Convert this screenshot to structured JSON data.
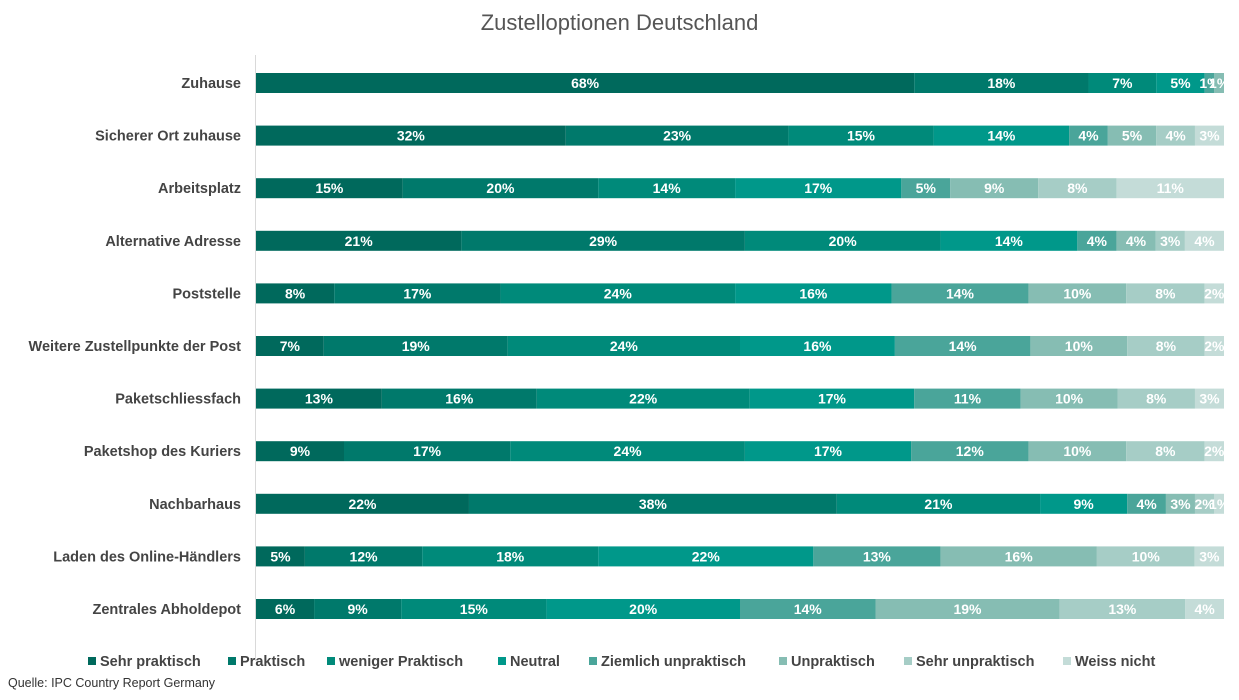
{
  "chart_data": {
    "type": "bar",
    "orientation": "horizontal",
    "stacked": true,
    "title": "Zustelloptionen Deutschland",
    "categories": [
      "Zuhause",
      "Sicherer Ort zuhause",
      "Arbeitsplatz",
      "Alternative Adresse",
      "Poststelle",
      "Weitere Zustellpunkte der Post",
      "Paketschliessfach",
      "Paketshop des Kuriers",
      "Nachbarhaus",
      "Laden des Online-Händlers",
      "Zentrales Abholdepot"
    ],
    "series": [
      {
        "name": "Sehr praktisch",
        "color": "#00695c",
        "values": [
          68,
          32,
          15,
          21,
          8,
          7,
          13,
          9,
          22,
          5,
          6
        ]
      },
      {
        "name": "Praktisch",
        "color": "#00796b",
        "values": [
          18,
          23,
          20,
          29,
          17,
          19,
          16,
          17,
          38,
          12,
          9
        ]
      },
      {
        "name": "weniger Praktisch",
        "color": "#008a7a",
        "values": [
          7,
          15,
          14,
          20,
          24,
          24,
          22,
          24,
          21,
          18,
          15
        ]
      },
      {
        "name": "Neutral",
        "color": "#00988a",
        "values": [
          5,
          14,
          17,
          14,
          16,
          16,
          17,
          17,
          9,
          22,
          20
        ]
      },
      {
        "name": "Ziemlich unpraktisch",
        "color": "#4aa59a",
        "values": [
          1,
          4,
          5,
          4,
          14,
          14,
          11,
          12,
          4,
          13,
          14
        ]
      },
      {
        "name": "Unpraktisch",
        "color": "#86bdb3",
        "values": [
          1,
          5,
          9,
          4,
          10,
          10,
          10,
          10,
          3,
          16,
          19
        ]
      },
      {
        "name": "Sehr unpraktisch",
        "color": "#a6cdc6",
        "values": [
          0,
          4,
          8,
          3,
          8,
          8,
          8,
          8,
          2,
          10,
          13
        ]
      },
      {
        "name": "Weiss nicht",
        "color": "#c4dcd8",
        "values": [
          0,
          3,
          11,
          4,
          2,
          2,
          3,
          2,
          1,
          3,
          4
        ]
      }
    ],
    "value_suffix": "%",
    "xlim": [
      0,
      100
    ],
    "legend_position": "bottom",
    "grid": false
  },
  "source_text": "Quelle: IPC Country Report Germany"
}
